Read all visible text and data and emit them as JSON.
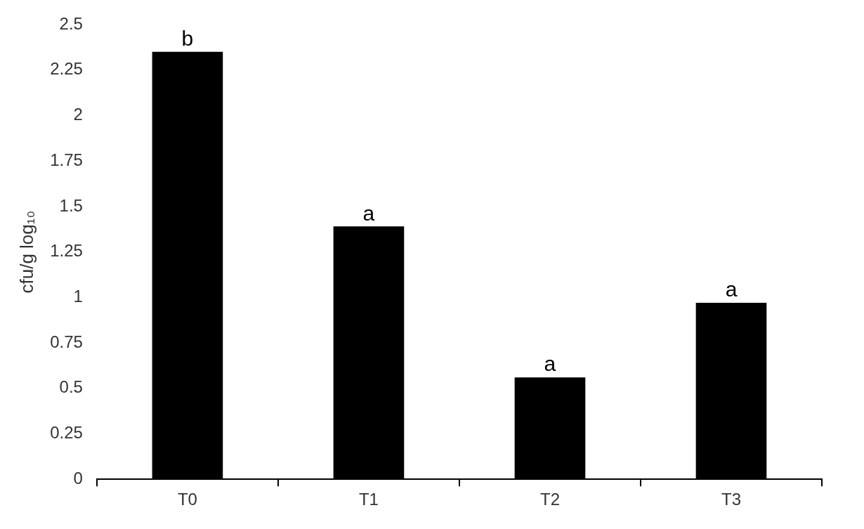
{
  "chart_data": {
    "type": "bar",
    "ylabel": "cfu/g log₁₀",
    "categories": [
      "T0",
      "T1",
      "T2",
      "T3"
    ],
    "values": [
      2.35,
      1.39,
      0.56,
      0.97
    ],
    "color": "#000000",
    "ylim": [
      0,
      2.5
    ],
    "yticks": [
      0,
      0.25,
      0.5,
      0.75,
      1,
      1.25,
      1.5,
      1.75,
      2,
      2.25,
      2.5
    ],
    "annotations": [
      {
        "text": "b",
        "x": "T0",
        "y": 2.35
      },
      {
        "text": "a",
        "x": "T1",
        "y": 1.39
      },
      {
        "text": "a",
        "x": "T2",
        "y": 0.56
      },
      {
        "text": "a",
        "x": "T3",
        "y": 0.97
      }
    ]
  }
}
